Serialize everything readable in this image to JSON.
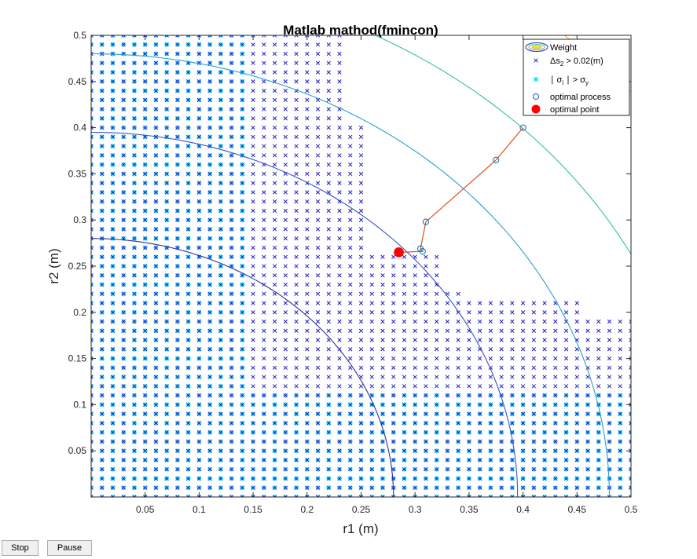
{
  "figure": {
    "buttons": {
      "stop": "Stop",
      "pause": "Pause"
    }
  },
  "chart_data": {
    "type": "scatter",
    "title": "Matlab mathod(fmincon)",
    "xlabel": "r1 (m)",
    "ylabel": "r2 (m)",
    "xlim": [
      0,
      0.5
    ],
    "ylim": [
      0,
      0.5
    ],
    "xticks": [
      "0.05",
      "0.1",
      "0.15",
      "0.2",
      "0.25",
      "0.3",
      "0.35",
      "0.4",
      "0.45",
      "0.5"
    ],
    "yticks": [
      "0.05",
      "0.1",
      "0.15",
      "0.2",
      "0.25",
      "0.3",
      "0.35",
      "0.4",
      "0.45",
      "0.5"
    ],
    "grid": false,
    "legend_position": "top-right",
    "legend": [
      {
        "label": "Weight",
        "marker": "ellipse"
      },
      {
        "label": "Δs2 > 0.02(m)",
        "main": "Δs",
        "sub": "2",
        "rest": " > 0.02(m)",
        "marker": "x"
      },
      {
        "label": "|σi| > σy",
        "main": "∣ σ",
        "sub": "i",
        "rest": " ∣ > σ",
        "sub2": "y",
        "marker": "*"
      },
      {
        "label": "optimal process",
        "marker": "o"
      },
      {
        "label": "optimal point",
        "marker": "filled-circle"
      }
    ],
    "series": [
      {
        "name": "Weight",
        "kind": "contour",
        "radii": [
          0.28,
          0.395,
          0.48,
          0.565,
          0.665
        ],
        "colors": [
          "#2f2fa0",
          "#3a55c8",
          "#2a9ed0",
          "#33c2a0",
          "#f0b42d"
        ]
      },
      {
        "name": "Δs2 > 0.02(m)",
        "kind": "grid-markers",
        "marker": "x",
        "color": "#1f1fc8",
        "grid_step": 0.01,
        "region_steps": [
          [
            0.23,
            0.5
          ],
          [
            0.25,
            0.4
          ],
          [
            0.32,
            0.26
          ],
          [
            0.34,
            0.22
          ],
          [
            0.45,
            0.21
          ],
          [
            0.5,
            0.19
          ]
        ]
      },
      {
        "name": "|σi| > σy",
        "kind": "grid-markers",
        "marker": "*",
        "color": "#00e5ff",
        "grid_step": 0.01,
        "regions": [
          [
            0,
            0.145,
            0,
            0.5
          ],
          [
            0.145,
            0.5,
            0,
            0.115
          ]
        ]
      },
      {
        "name": "optimal process",
        "kind": "line",
        "marker": "o",
        "color": "#d95319",
        "marker_color": "#1f77b4",
        "x": [
          0.4,
          0.375,
          0.31,
          0.305,
          0.307,
          0.285
        ],
        "y": [
          0.4,
          0.365,
          0.298,
          0.269,
          0.266,
          0.265
        ]
      },
      {
        "name": "optimal point",
        "kind": "point",
        "color": "#ff0000",
        "x": [
          0.285
        ],
        "y": [
          0.265
        ]
      }
    ]
  }
}
